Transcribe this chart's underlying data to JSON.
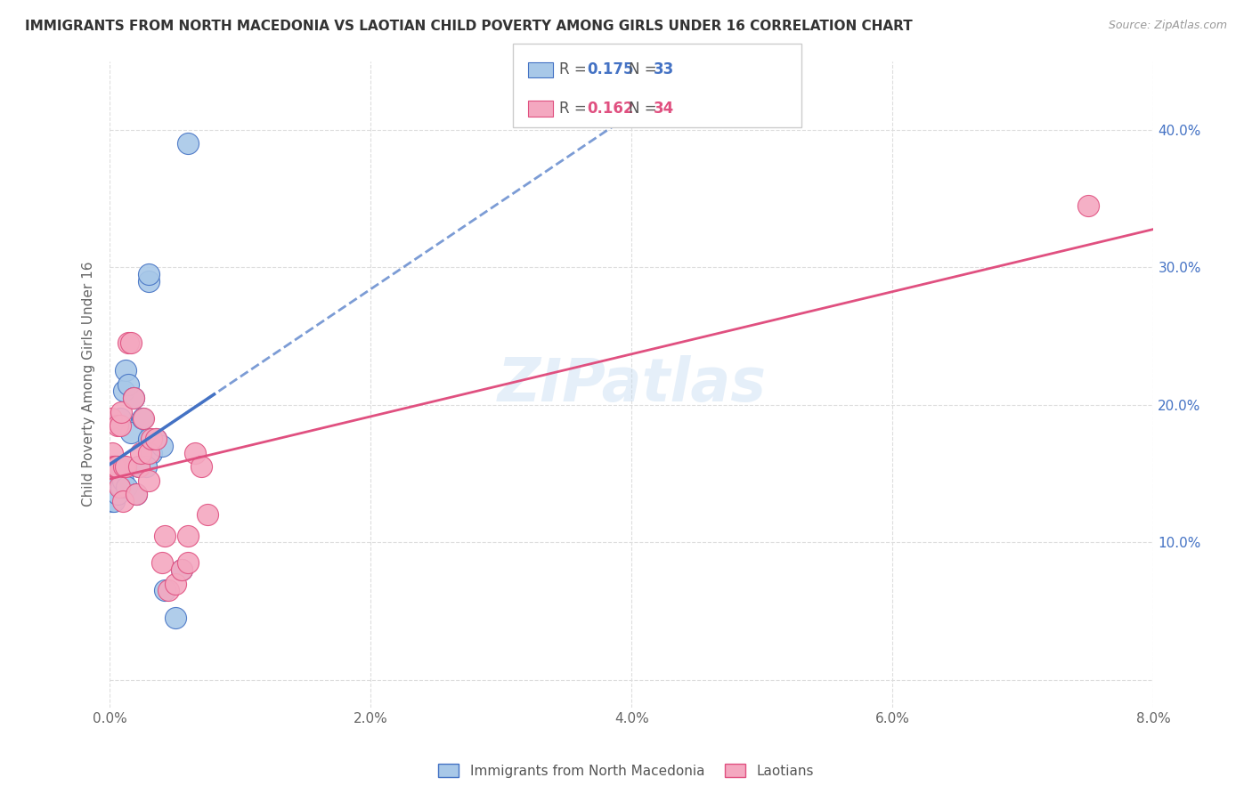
{
  "title": "IMMIGRANTS FROM NORTH MACEDONIA VS LAOTIAN CHILD POVERTY AMONG GIRLS UNDER 16 CORRELATION CHART",
  "source": "Source: ZipAtlas.com",
  "ylabel": "Child Poverty Among Girls Under 16",
  "legend_label_blue": "Immigrants from North Macedonia",
  "legend_label_pink": "Laotians",
  "R_blue": 0.175,
  "N_blue": 33,
  "R_pink": 0.162,
  "N_pink": 34,
  "xlim": [
    0.0,
    0.08
  ],
  "ylim": [
    -0.02,
    0.45
  ],
  "yticks": [
    0.0,
    0.1,
    0.2,
    0.3,
    0.4
  ],
  "xticks": [
    0.0,
    0.02,
    0.04,
    0.06,
    0.08
  ],
  "xtick_labels": [
    "0.0%",
    "2.0%",
    "4.0%",
    "6.0%",
    "8.0%"
  ],
  "ytick_labels_right": [
    "",
    "10.0%",
    "20.0%",
    "30.0%",
    "40.0%"
  ],
  "color_blue": "#a8c8e8",
  "color_pink": "#f4a8c0",
  "color_blue_line": "#4472c4",
  "color_pink_line": "#e05080",
  "watermark": "ZIPatlas",
  "blue_x": [
    0.0001,
    0.0002,
    0.0002,
    0.0003,
    0.0003,
    0.0004,
    0.0005,
    0.0006,
    0.0006,
    0.0007,
    0.0008,
    0.0009,
    0.001,
    0.0011,
    0.0012,
    0.0013,
    0.0014,
    0.0016,
    0.0018,
    0.002,
    0.0022,
    0.0025,
    0.003,
    0.003,
    0.0032,
    0.0035,
    0.003,
    0.0028,
    0.004,
    0.0042,
    0.005,
    0.0055,
    0.006
  ],
  "blue_y": [
    0.155,
    0.145,
    0.13,
    0.145,
    0.13,
    0.155,
    0.145,
    0.155,
    0.135,
    0.155,
    0.19,
    0.14,
    0.145,
    0.21,
    0.225,
    0.14,
    0.215,
    0.18,
    0.205,
    0.135,
    0.155,
    0.19,
    0.29,
    0.295,
    0.165,
    0.175,
    0.175,
    0.155,
    0.17,
    0.065,
    0.045,
    0.08,
    0.39
  ],
  "pink_x": [
    0.0001,
    0.0002,
    0.0003,
    0.0004,
    0.0005,
    0.0006,
    0.0007,
    0.0008,
    0.0009,
    0.001,
    0.0011,
    0.0012,
    0.0014,
    0.0016,
    0.0018,
    0.002,
    0.0022,
    0.0024,
    0.0026,
    0.003,
    0.003,
    0.0032,
    0.0035,
    0.004,
    0.0042,
    0.0045,
    0.005,
    0.0055,
    0.006,
    0.006,
    0.0065,
    0.007,
    0.0075,
    0.075
  ],
  "pink_y": [
    0.19,
    0.165,
    0.155,
    0.155,
    0.155,
    0.185,
    0.14,
    0.185,
    0.195,
    0.13,
    0.155,
    0.155,
    0.245,
    0.245,
    0.205,
    0.135,
    0.155,
    0.165,
    0.19,
    0.165,
    0.145,
    0.175,
    0.175,
    0.085,
    0.105,
    0.065,
    0.07,
    0.08,
    0.105,
    0.085,
    0.165,
    0.155,
    0.12,
    0.345
  ],
  "bubble_size": 300
}
